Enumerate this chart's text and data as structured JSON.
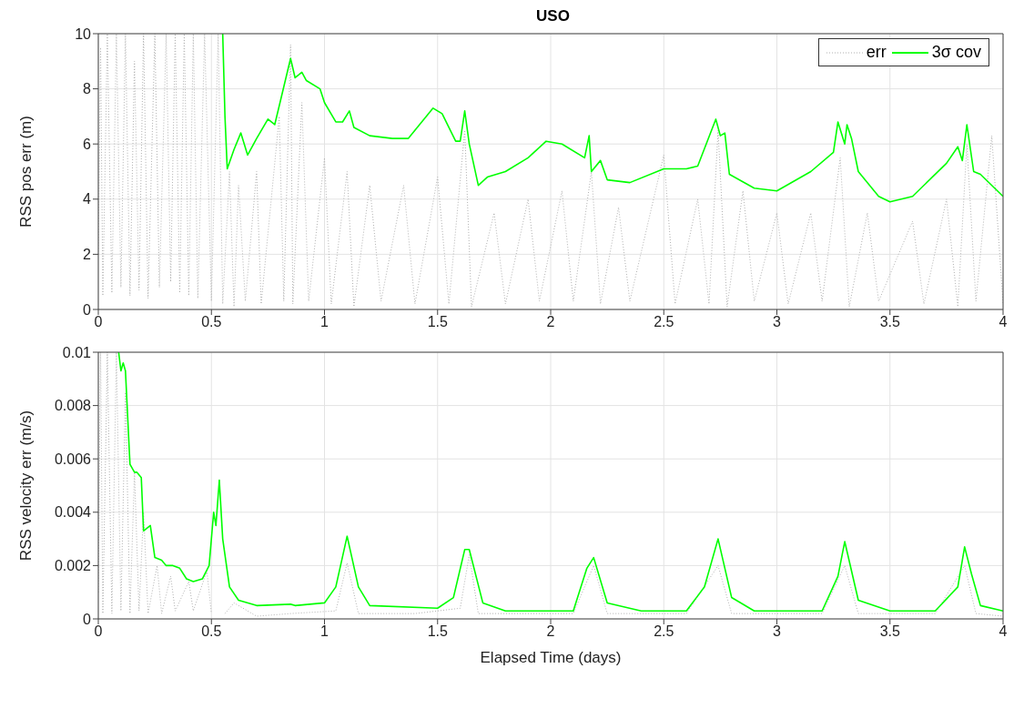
{
  "chart_data": [
    {
      "type": "line",
      "title": "USO",
      "ylabel": "RSS pos err (m)",
      "xlim": [
        0,
        4
      ],
      "xticks": [
        0,
        0.5,
        1,
        1.5,
        2,
        2.5,
        3,
        3.5,
        4
      ],
      "ylim": [
        0,
        10
      ],
      "yticks": [
        0,
        2,
        4,
        6,
        8,
        10
      ],
      "grid": true,
      "legend": "top right",
      "series": [
        {
          "name": "err",
          "color": "#b0b0b0",
          "line_style": "dotted",
          "x": [
            0,
            0.01,
            0.02,
            0.04,
            0.06,
            0.08,
            0.1,
            0.12,
            0.14,
            0.16,
            0.18,
            0.2,
            0.22,
            0.25,
            0.27,
            0.3,
            0.32,
            0.34,
            0.36,
            0.38,
            0.4,
            0.42,
            0.44,
            0.47,
            0.5,
            0.53,
            0.55,
            0.58,
            0.6,
            0.62,
            0.65,
            0.7,
            0.72,
            0.8,
            0.82,
            0.85,
            0.86,
            0.9,
            0.93,
            1,
            1.03,
            1.1,
            1.13,
            1.2,
            1.25,
            1.35,
            1.4,
            1.5,
            1.55,
            1.62,
            1.65,
            1.75,
            1.8,
            1.9,
            1.95,
            2.05,
            2.1,
            2.18,
            2.22,
            2.3,
            2.35,
            2.5,
            2.55,
            2.65,
            2.7,
            2.74,
            2.78,
            2.85,
            2.9,
            3,
            3.05,
            3.15,
            3.2,
            3.28,
            3.32,
            3.4,
            3.45,
            3.6,
            3.65,
            3.75,
            3.8,
            3.84,
            3.88,
            3.95,
            4
          ],
          "values": [
            2,
            9.5,
            0.5,
            10,
            0.6,
            10,
            0.8,
            10,
            0.5,
            9,
            0.7,
            10,
            0.4,
            10,
            0.8,
            10,
            1,
            10,
            0.6,
            10,
            0.5,
            10,
            0.4,
            10,
            0.3,
            10,
            0.2,
            5,
            0.1,
            4.5,
            0.3,
            5,
            0.2,
            7,
            0.3,
            9.6,
            0.2,
            7.5,
            0.3,
            5.5,
            0.2,
            5,
            0.1,
            4.5,
            0.3,
            4.5,
            0.2,
            4.8,
            0.2,
            6.5,
            0.1,
            3.5,
            0.2,
            4,
            0.3,
            4.3,
            0.3,
            5,
            0.2,
            3.7,
            0.3,
            5.6,
            0.2,
            4,
            0.2,
            6.5,
            0.1,
            4.3,
            0.3,
            3.5,
            0.2,
            3.5,
            0.3,
            5.5,
            0.1,
            3.5,
            0.3,
            3.2,
            0.2,
            4,
            0.1,
            6,
            0.3,
            6.3,
            0.2
          ]
        },
        {
          "name": "3σ cov",
          "color": "#00ff00",
          "line_style": "solid",
          "x": [
            0.55,
            0.56,
            0.57,
            0.6,
            0.63,
            0.66,
            0.7,
            0.75,
            0.78,
            0.85,
            0.87,
            0.9,
            0.92,
            0.98,
            1,
            1.05,
            1.08,
            1.11,
            1.13,
            1.2,
            1.3,
            1.37,
            1.48,
            1.52,
            1.58,
            1.6,
            1.62,
            1.64,
            1.68,
            1.72,
            1.8,
            1.9,
            1.98,
            2.05,
            2.15,
            2.17,
            2.18,
            2.22,
            2.25,
            2.35,
            2.5,
            2.6,
            2.65,
            2.73,
            2.75,
            2.77,
            2.79,
            2.9,
            3,
            3.15,
            3.25,
            3.27,
            3.3,
            3.31,
            3.33,
            3.36,
            3.45,
            3.5,
            3.6,
            3.75,
            3.8,
            3.82,
            3.84,
            3.87,
            3.9,
            4
          ],
          "values": [
            10,
            7,
            5.1,
            5.8,
            6.4,
            5.6,
            6.2,
            6.9,
            6.7,
            9.1,
            8.4,
            8.6,
            8.3,
            8,
            7.5,
            6.8,
            6.8,
            7.2,
            6.6,
            6.3,
            6.2,
            6.2,
            7.3,
            7.1,
            6.1,
            6.1,
            7.2,
            6,
            4.5,
            4.8,
            5,
            5.5,
            6.1,
            6,
            5.5,
            6.3,
            5,
            5.4,
            4.7,
            4.6,
            5.1,
            5.1,
            5.2,
            6.9,
            6.3,
            6.4,
            4.9,
            4.4,
            4.3,
            5,
            5.7,
            6.8,
            6,
            6.7,
            6.2,
            5,
            4.1,
            3.9,
            4.1,
            5.3,
            5.9,
            5.4,
            6.7,
            5,
            4.9,
            4.1
          ]
        }
      ]
    },
    {
      "type": "line",
      "xlabel": "Elapsed Time (days)",
      "ylabel": "RSS velocity err (m/s)",
      "xlim": [
        0,
        4
      ],
      "xticks": [
        0,
        0.5,
        1,
        1.5,
        2,
        2.5,
        3,
        3.5,
        4
      ],
      "ylim": [
        0,
        0.01
      ],
      "yticks": [
        0,
        0.002,
        0.004,
        0.006,
        0.008,
        0.01
      ],
      "grid": true,
      "series": [
        {
          "color": "#b0b0b0",
          "line_style": "dotted",
          "x": [
            0,
            0.01,
            0.02,
            0.04,
            0.06,
            0.08,
            0.1,
            0.12,
            0.14,
            0.16,
            0.18,
            0.2,
            0.22,
            0.26,
            0.28,
            0.32,
            0.34,
            0.4,
            0.42,
            0.48,
            0.5,
            0.54,
            0.56,
            0.6,
            0.7,
            0.85,
            1.05,
            1.1,
            1.15,
            1.4,
            1.6,
            1.64,
            1.68,
            2.1,
            2.19,
            2.25,
            2.6,
            2.74,
            2.8,
            3.2,
            3.3,
            3.36,
            3.7,
            3.83,
            3.88,
            4
          ],
          "values": [
            0.001,
            0.01,
            0.0002,
            0.01,
            0.0002,
            0.01,
            0.0003,
            0.0085,
            0.0002,
            0.0055,
            0.0003,
            0.004,
            0.0002,
            0.002,
            0.0002,
            0.0016,
            0.0003,
            0.0014,
            0.0003,
            0.0018,
            0.0002,
            null,
            0.0002,
            0.0006,
            0.0001,
            0.0002,
            0.0003,
            0.0021,
            0.0002,
            0.0002,
            0.0004,
            0.0024,
            0.0002,
            0.0002,
            0.002,
            0.0002,
            0.0002,
            0.002,
            0.0002,
            0.0002,
            0.002,
            0.0002,
            0.0002,
            0.002,
            0.0002,
            0.0001
          ]
        },
        {
          "color": "#00ff00",
          "line_style": "solid",
          "x": [
            0.09,
            0.1,
            0.11,
            0.12,
            0.14,
            0.16,
            0.17,
            0.19,
            0.2,
            0.23,
            0.25,
            0.28,
            0.3,
            0.33,
            0.36,
            0.39,
            0.42,
            0.46,
            0.49,
            0.51,
            0.52,
            0.535,
            0.55,
            0.58,
            0.62,
            0.7,
            0.85,
            0.87,
            1,
            1.05,
            1.1,
            1.15,
            1.2,
            1.5,
            1.57,
            1.62,
            1.64,
            1.7,
            1.8,
            2.1,
            2.16,
            2.19,
            2.25,
            2.4,
            2.6,
            2.68,
            2.74,
            2.8,
            2.9,
            3.2,
            3.27,
            3.3,
            3.36,
            3.5,
            3.7,
            3.8,
            3.83,
            3.86,
            3.9,
            4
          ],
          "values": [
            0.01,
            0.0093,
            0.0096,
            0.0093,
            0.0058,
            0.0055,
            0.0055,
            0.0053,
            0.0033,
            0.0035,
            0.0023,
            0.0022,
            0.002,
            0.002,
            0.0019,
            0.0015,
            0.0014,
            0.0015,
            0.002,
            0.004,
            0.0035,
            0.0052,
            0.003,
            0.0012,
            0.0007,
            0.0005,
            0.00055,
            0.0005,
            0.0006,
            0.0012,
            0.0031,
            0.0012,
            0.0005,
            0.0004,
            0.0008,
            0.0026,
            0.0026,
            0.0006,
            0.0003,
            0.0003,
            0.0019,
            0.0023,
            0.0006,
            0.0003,
            0.0003,
            0.0012,
            0.003,
            0.0008,
            0.0003,
            0.0003,
            0.0016,
            0.0029,
            0.0007,
            0.0003,
            0.0003,
            0.0012,
            0.0027,
            0.0017,
            0.0005,
            0.0003
          ]
        }
      ]
    }
  ]
}
